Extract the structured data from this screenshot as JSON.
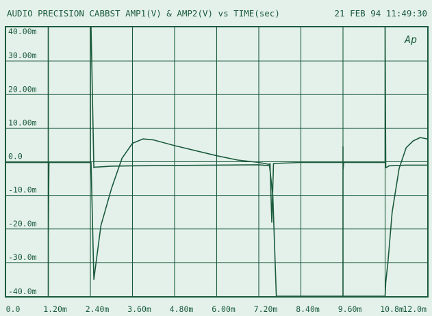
{
  "chart_data": {
    "type": "line",
    "title": "AUDIO PRECISION CABBST AMP1(V) & AMP2(V) vs TIME(sec)",
    "timestamp": "21 FEB 94 11:49:30",
    "logo": "Ap",
    "xlabel": "",
    "ylabel": "",
    "x_unit": "sec",
    "y_unit": "V",
    "xlim": [
      0,
      0.012
    ],
    "ylim": [
      -0.04,
      0.04
    ],
    "x_ticks": [
      {
        "v": 0,
        "label": "0.0"
      },
      {
        "v": 0.0012,
        "label": "1.20m"
      },
      {
        "v": 0.0024,
        "label": "2.40m"
      },
      {
        "v": 0.0036,
        "label": "3.60m"
      },
      {
        "v": 0.0048,
        "label": "4.80m"
      },
      {
        "v": 0.006,
        "label": "6.00m"
      },
      {
        "v": 0.0072,
        "label": "7.20m"
      },
      {
        "v": 0.0084,
        "label": "8.40m"
      },
      {
        "v": 0.0096,
        "label": "9.60m"
      },
      {
        "v": 0.0108,
        "label": "10.8m"
      },
      {
        "v": 0.012,
        "label": "12.0m"
      }
    ],
    "y_ticks": [
      {
        "v": 0.04,
        "label": "40.00m"
      },
      {
        "v": 0.03,
        "label": "30.00m"
      },
      {
        "v": 0.02,
        "label": "20.00m"
      },
      {
        "v": 0.01,
        "label": "10.00m"
      },
      {
        "v": 0,
        "label": "0.0"
      },
      {
        "v": -0.01,
        "label": "-10.0m"
      },
      {
        "v": -0.02,
        "label": "-20.0m"
      },
      {
        "v": -0.03,
        "label": "-30.0m"
      },
      {
        "v": -0.04,
        "label": "-40.0m"
      }
    ],
    "grid": true,
    "colors": {
      "trace": "#1a5a3c",
      "background": "#e4f1ea",
      "grid": "#1a5a3c"
    },
    "series": [
      {
        "x": [
          0,
          0.0012,
          0.0012,
          0.0012,
          0.0012,
          0.0012,
          0.00122,
          0.0024,
          0.0024,
          0.00242,
          0.0025,
          0.00252,
          0.003,
          0.0036,
          0.0048,
          0.006,
          0.0072,
          0.0075,
          0.00752,
          0.00757,
          0.00762,
          0.0084,
          0.0096,
          0.0096,
          0.0096,
          0.0096,
          0.0096,
          0.00962,
          0.0108,
          0.0108,
          0.01082,
          0.0109,
          0.01092,
          0.0114,
          0.012
        ],
        "y": [
          -0.0002,
          -0.0002,
          0.04,
          -0.04,
          0.04,
          -0.0229,
          -0.0002,
          -0.0002,
          0.04,
          0.04,
          -0.0018,
          -0.0016,
          -0.0013,
          -0.0012,
          -0.0011,
          -0.001,
          -0.0009,
          -0.0012,
          -0.0005,
          -0.018,
          -0.0005,
          -0.0002,
          -0.0002,
          0.0045,
          -0.04,
          0.0045,
          -0.0025,
          -0.0002,
          -0.0002,
          0.04,
          -0.0018,
          -0.0013,
          -0.0012,
          -0.001,
          -0.001
        ]
      },
      {
        "x": [
          0,
          0.00242,
          0.0025,
          0.0027,
          0.003,
          0.0033,
          0.0036,
          0.0039,
          0.0042,
          0.0048,
          0.006,
          0.0066,
          0.0072,
          0.0075,
          0.0076,
          0.0077,
          0.0078,
          0.0084,
          0.0096,
          0.0108,
          0.01082,
          0.01088,
          0.011,
          0.0112,
          0.0114,
          0.0116,
          0.0118,
          0.012
        ],
        "y": [
          -0.0002,
          -0.0002,
          -0.035,
          -0.019,
          -0.008,
          0.001,
          0.0055,
          0.0068,
          0.0065,
          0.0048,
          0.0018,
          0.0005,
          -0.0002,
          -0.0008,
          -0.01,
          -0.04,
          -0.04,
          -0.04,
          -0.04,
          -0.04,
          -0.0358,
          -0.03,
          -0.015,
          -0.002,
          0.0042,
          0.0062,
          0.0072,
          0.0068
        ]
      }
    ]
  }
}
